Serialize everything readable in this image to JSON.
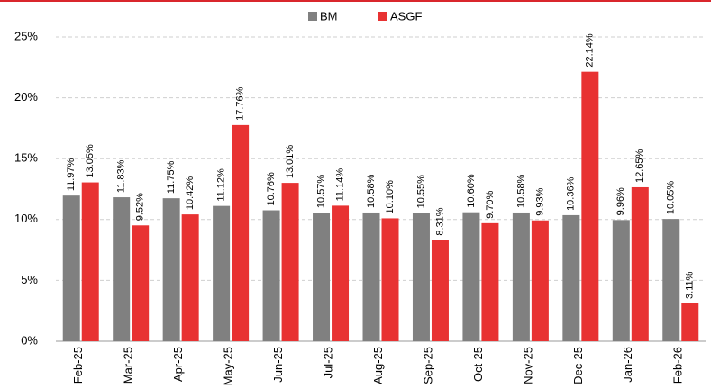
{
  "chart_data": {
    "type": "bar",
    "categories": [
      "Feb-25",
      "Mar-25",
      "Apr-25",
      "May-25",
      "Jun-25",
      "Jul-25",
      "Aug-25",
      "Sep-25",
      "Oct-25",
      "Nov-25",
      "Dec-25",
      "Jan-26",
      "Feb-26"
    ],
    "series": [
      {
        "name": "BM",
        "color": "#808080",
        "values": [
          11.97,
          11.83,
          11.75,
          11.12,
          10.76,
          10.57,
          10.58,
          10.55,
          10.6,
          10.58,
          10.36,
          9.96,
          10.05
        ],
        "value_labels": [
          "11.97%",
          "11.83%",
          "11.75%",
          "11.12%",
          "10.76%",
          "10.57%",
          "10.58%",
          "10.55%",
          "10.60%",
          "10.58%",
          "10.36%",
          "9.96%",
          "10.05%"
        ]
      },
      {
        "name": "ASGF",
        "color": "#e83232",
        "values": [
          13.05,
          9.52,
          10.42,
          17.76,
          13.01,
          11.14,
          10.1,
          8.31,
          9.7,
          9.93,
          22.14,
          12.65,
          3.11
        ],
        "value_labels": [
          "13.05%",
          "9.52%",
          "10.42%",
          "17.76%",
          "13.01%",
          "11.14%",
          "10.10%",
          "8.31%",
          "9.70%",
          "9.93%",
          "22.14%",
          "12.65%",
          "3.11%"
        ]
      }
    ],
    "ylim": [
      0,
      25
    ],
    "yticks": [
      {
        "value": 0,
        "label": "0%"
      },
      {
        "value": 5,
        "label": "5%"
      },
      {
        "value": 10,
        "label": "10%"
      },
      {
        "value": 15,
        "label": "15%"
      },
      {
        "value": 20,
        "label": "20%"
      },
      {
        "value": 25,
        "label": "25%"
      }
    ],
    "grid": true,
    "legend": "top"
  }
}
